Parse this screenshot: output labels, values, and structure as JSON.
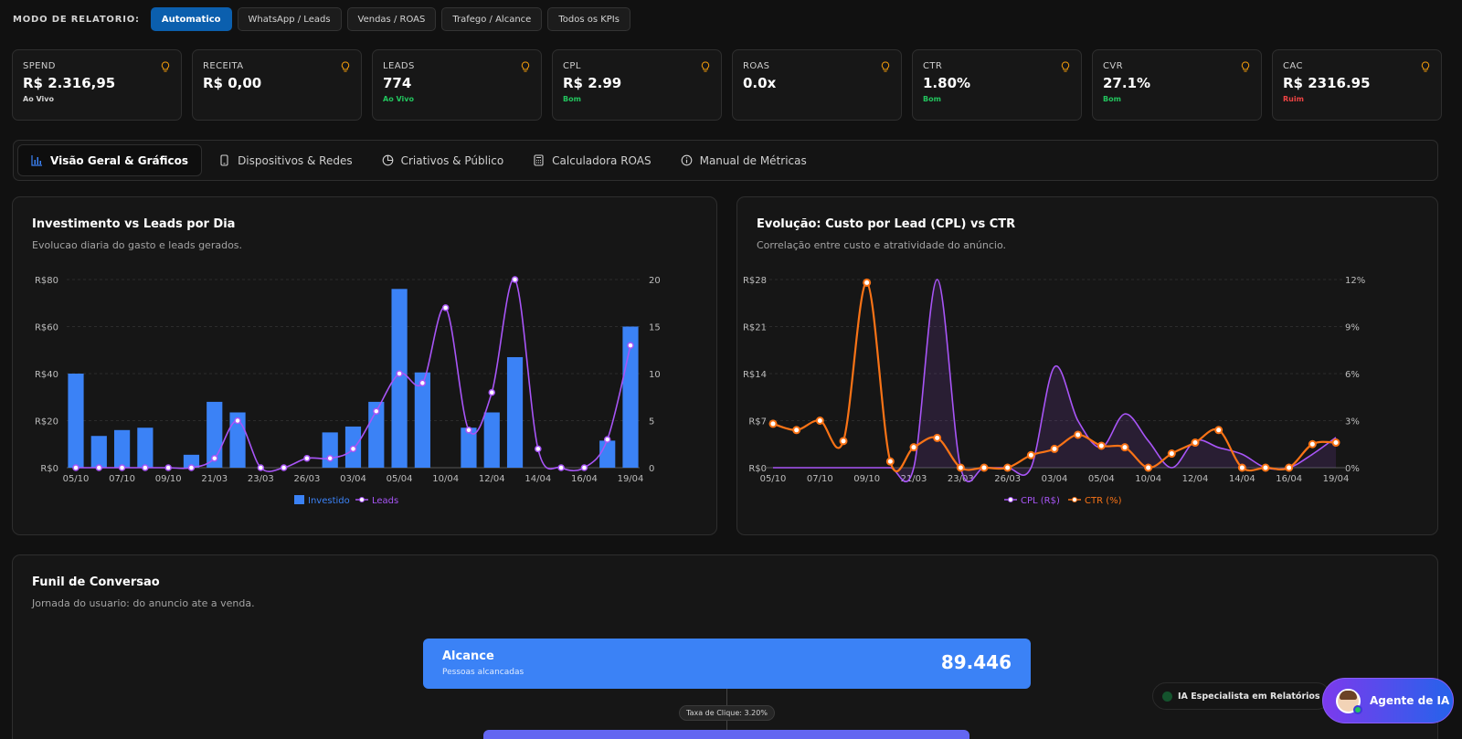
{
  "mode_bar": {
    "label": "MODO DE RELATORIO:",
    "buttons": [
      {
        "label": "Automatico",
        "active": true
      },
      {
        "label": "WhatsApp / Leads",
        "active": false
      },
      {
        "label": "Vendas / ROAS",
        "active": false
      },
      {
        "label": "Trafego / Alcance",
        "active": false
      },
      {
        "label": "Todos os KPIs",
        "active": false
      }
    ]
  },
  "kpis": [
    {
      "label": "SPEND",
      "value": "R$ 2.316,95",
      "status": "Ao Vivo",
      "status_color": "#d4d4d4"
    },
    {
      "label": "RECEITA",
      "value": "R$ 0,00",
      "status": "",
      "status_color": "#d4d4d4"
    },
    {
      "label": "LEADS",
      "value": "774",
      "status": "Ao Vivo",
      "status_color": "#22c55e"
    },
    {
      "label": "CPL",
      "value": "R$ 2.99",
      "status": "Bom",
      "status_color": "#22c55e"
    },
    {
      "label": "ROAS",
      "value": "0.0x",
      "status": "",
      "status_color": "#d4d4d4"
    },
    {
      "label": "CTR",
      "value": "1.80%",
      "status": "Bom",
      "status_color": "#22c55e"
    },
    {
      "label": "CVR",
      "value": "27.1%",
      "status": "Bom",
      "status_color": "#22c55e"
    },
    {
      "label": "CAC",
      "value": "R$ 2316.95",
      "status": "Ruim",
      "status_color": "#ef4444"
    }
  ],
  "tabs": [
    {
      "label": "Visão Geral & Gráficos",
      "icon": "bar-chart-icon",
      "active": true
    },
    {
      "label": "Dispositivos & Redes",
      "icon": "smartphone-icon",
      "active": false
    },
    {
      "label": "Criativos & Público",
      "icon": "pie-chart-icon",
      "active": false
    },
    {
      "label": "Calculadora ROAS",
      "icon": "calculator-icon",
      "active": false
    },
    {
      "label": "Manual de Métricas",
      "icon": "info-icon",
      "active": false
    }
  ],
  "chart1": {
    "title": "Investimento vs Leads por Dia",
    "subtitle": "Evolucao diaria do gasto e leads gerados."
  },
  "chart2": {
    "title": "Evolução: Custo por Lead (CPL) vs CTR",
    "subtitle": "Correlação entre custo e atratividade do anúncio."
  },
  "chart_data": [
    {
      "type": "bar",
      "title": "Investimento vs Leads por Dia",
      "x_tick_labels": [
        "05/10",
        "07/10",
        "09/10",
        "21/03",
        "23/03",
        "26/03",
        "03/04",
        "05/04",
        "10/04",
        "12/04",
        "14/04",
        "16/04",
        "19/04"
      ],
      "y_left_ticks": [
        "R$0",
        "R$20",
        "R$40",
        "R$60",
        "R$80"
      ],
      "y_right_ticks": [
        "0",
        "5",
        "10",
        "15",
        "20"
      ],
      "ylim_left": [
        0,
        80
      ],
      "ylim_right": [
        0,
        20
      ],
      "legend_position": "bottom",
      "series": [
        {
          "name": "Investido",
          "type": "bar",
          "axis": "left",
          "color": "#3b82f6",
          "values": [
            40,
            13.5,
            16,
            17,
            0,
            5.5,
            28,
            23.5,
            0,
            0,
            0,
            15,
            17.5,
            28,
            76,
            40.5,
            0,
            17,
            23.5,
            47,
            0,
            0,
            0,
            11.5,
            60
          ]
        },
        {
          "name": "Leads",
          "type": "line",
          "axis": "right",
          "color": "#a855f7",
          "values": [
            0,
            0,
            0,
            0,
            0,
            0,
            1,
            5,
            0,
            0,
            1,
            1,
            2,
            6,
            10,
            9,
            17,
            4,
            8,
            20,
            2,
            0,
            0,
            3,
            13
          ]
        }
      ]
    },
    {
      "type": "line",
      "title": "Evolução: Custo por Lead (CPL) vs CTR",
      "x_tick_labels": [
        "05/10",
        "07/10",
        "09/10",
        "21/03",
        "23/03",
        "26/03",
        "03/04",
        "05/04",
        "10/04",
        "12/04",
        "14/04",
        "16/04",
        "19/04"
      ],
      "y_left_ticks": [
        "R$0",
        "R$7",
        "R$14",
        "R$21",
        "R$28"
      ],
      "y_right_ticks": [
        "0%",
        "3%",
        "6%",
        "9%",
        "12%"
      ],
      "ylim_left": [
        0,
        28
      ],
      "ylim_right": [
        0,
        12
      ],
      "legend_position": "bottom",
      "series": [
        {
          "name": "CPL (R$)",
          "axis": "left",
          "color": "#a855f7",
          "values": [
            0,
            0,
            0,
            0,
            0,
            0,
            0,
            28,
            0,
            0,
            0,
            0,
            15,
            7,
            3,
            8,
            4,
            0,
            4,
            3,
            2,
            0,
            0,
            2,
            4.5
          ]
        },
        {
          "name": "CTR (%)",
          "axis": "right",
          "color": "#f97316",
          "values": [
            2.8,
            2.4,
            3.0,
            1.7,
            11.8,
            0.4,
            1.3,
            1.9,
            0,
            0,
            0,
            0.8,
            1.2,
            2.1,
            1.4,
            1.3,
            0,
            0.9,
            1.6,
            2.4,
            0,
            0,
            0,
            1.5,
            1.6
          ]
        }
      ]
    }
  ],
  "funnel": {
    "title": "Funil de Conversao",
    "subtitle": "Jornada do usuario: do anuncio ate a venda.",
    "stage1_name": "Alcance",
    "stage1_desc": "Pessoas alcancadas",
    "stage1_value": "89.446",
    "stage1_color": "#3b82f6",
    "stage2_color": "#6366f1",
    "connector_label": "Taxa de Clique: 3.20%"
  },
  "assistant": {
    "status_label": "IA Especialista em Relatórios",
    "button_label": "Agente de IA"
  }
}
